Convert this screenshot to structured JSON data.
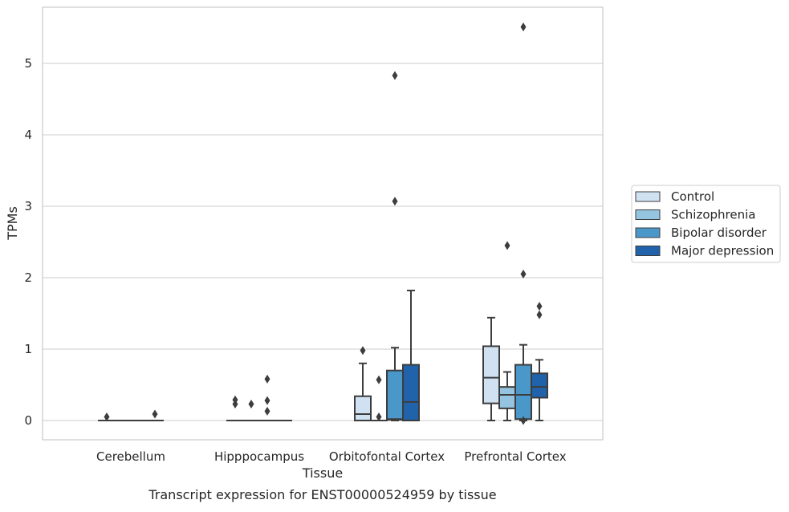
{
  "chart_data": {
    "type": "box",
    "title": "",
    "caption": "Transcript expression for ENST00000524959 by tissue",
    "xlabel": "Tissue",
    "ylabel": "TPMs",
    "ylim": [
      -0.27,
      5.8
    ],
    "yticks": [
      0,
      1,
      2,
      3,
      4,
      5
    ],
    "grid": true,
    "legend_position": "right",
    "categories": [
      "Cerebellum",
      "Hipppocampus",
      "Orbitofontal Cortex",
      "Prefrontal Cortex"
    ],
    "series": [
      {
        "name": "Control",
        "color": "#d0e1f2",
        "boxes": [
          {
            "q1": 0,
            "median": 0,
            "q3": 0,
            "whislo": 0,
            "whishi": 0,
            "fliers": [
              0.05
            ]
          },
          {
            "q1": 0,
            "median": 0,
            "q3": 0,
            "whislo": 0,
            "whishi": 0,
            "fliers": [
              0.23,
              0.29
            ]
          },
          {
            "q1": 0,
            "median": 0.09,
            "q3": 0.34,
            "whislo": 0,
            "whishi": 0.8,
            "fliers": [
              0.98
            ]
          },
          {
            "q1": 0.24,
            "median": 0.6,
            "q3": 1.04,
            "whislo": 0,
            "whishi": 1.44,
            "fliers": []
          }
        ]
      },
      {
        "name": "Schizophrenia",
        "color": "#94c4df",
        "boxes": [
          {
            "q1": 0,
            "median": 0,
            "q3": 0,
            "whislo": 0,
            "whishi": 0,
            "fliers": []
          },
          {
            "q1": 0,
            "median": 0,
            "q3": 0,
            "whislo": 0,
            "whishi": 0,
            "fliers": [
              0.23
            ]
          },
          {
            "q1": 0,
            "median": 0,
            "q3": 0,
            "whislo": 0,
            "whishi": 0,
            "fliers": [
              0.05,
              0.57
            ]
          },
          {
            "q1": 0.17,
            "median": 0.36,
            "q3": 0.47,
            "whislo": 0,
            "whishi": 0.68,
            "fliers": [
              2.45
            ]
          }
        ]
      },
      {
        "name": "Bipolar disorder",
        "color": "#4a98c9",
        "boxes": [
          {
            "q1": 0,
            "median": 0,
            "q3": 0,
            "whislo": 0,
            "whishi": 0,
            "fliers": []
          },
          {
            "q1": 0,
            "median": 0,
            "q3": 0,
            "whislo": 0,
            "whishi": 0,
            "fliers": [
              0.13,
              0.28,
              0.58
            ]
          },
          {
            "q1": 0.01,
            "median": 0.02,
            "q3": 0.7,
            "whislo": 0,
            "whishi": 1.02,
            "fliers": [
              3.07,
              4.83
            ]
          },
          {
            "q1": 0.02,
            "median": 0.36,
            "q3": 0.78,
            "whislo": 0,
            "whishi": 1.06,
            "fliers": [
              0,
              2.05,
              5.51
            ]
          }
        ]
      },
      {
        "name": "Major depression",
        "color": "#2163aa",
        "boxes": [
          {
            "q1": 0,
            "median": 0,
            "q3": 0,
            "whislo": 0,
            "whishi": 0,
            "fliers": [
              0.09
            ]
          },
          {
            "q1": 0,
            "median": 0,
            "q3": 0,
            "whislo": 0,
            "whishi": 0,
            "fliers": []
          },
          {
            "q1": 0,
            "median": 0.26,
            "q3": 0.78,
            "whislo": 0,
            "whishi": 1.82,
            "fliers": []
          },
          {
            "q1": 0.32,
            "median": 0.47,
            "q3": 0.66,
            "whislo": 0,
            "whishi": 0.85,
            "fliers": [
              1.48,
              1.6
            ]
          }
        ]
      }
    ]
  }
}
